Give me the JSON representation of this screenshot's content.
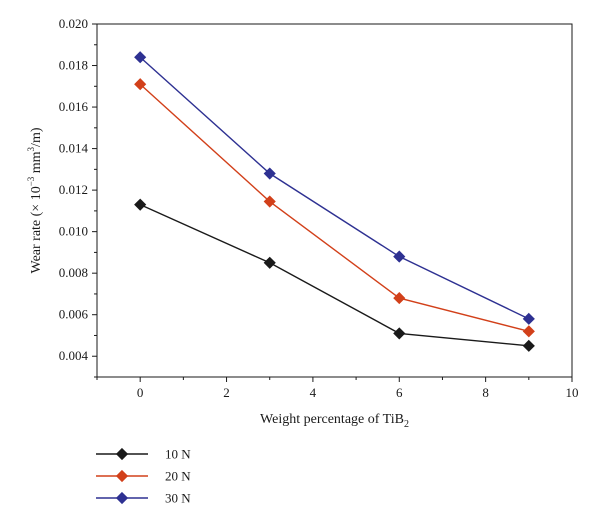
{
  "chart_data": {
    "type": "line",
    "xlabel": "Weight percentage of TiB",
    "xlabel_sub": "2",
    "ylabel": {
      "prefix": "Wear rate (× 10",
      "exp": "−3",
      "mid": " mm",
      "exp2": "3",
      "suffix": "/m)"
    },
    "xlim": [
      -1,
      10
    ],
    "ylim": [
      0.003,
      0.02
    ],
    "xticks": [
      "0",
      "2",
      "4",
      "6",
      "8",
      "10"
    ],
    "yticks": [
      "0.004",
      "0.006",
      "0.008",
      "0.010",
      "0.012",
      "0.014",
      "0.016",
      "0.018",
      "0.020"
    ],
    "grid": false,
    "legend_position": "bottom-left",
    "x": [
      0,
      3,
      6,
      9
    ],
    "series": [
      {
        "name": "10 N",
        "color": "#1a1a1a",
        "marker": "diamond",
        "values": [
          0.0113,
          0.0085,
          0.0051,
          0.0045
        ]
      },
      {
        "name": "20 N",
        "color": "#d2401a",
        "marker": "diamond",
        "values": [
          0.0171,
          0.01145,
          0.0068,
          0.0052
        ]
      },
      {
        "name": "30 N",
        "color": "#2e3192",
        "marker": "diamond",
        "values": [
          0.0184,
          0.0128,
          0.0088,
          0.0058
        ]
      }
    ]
  }
}
